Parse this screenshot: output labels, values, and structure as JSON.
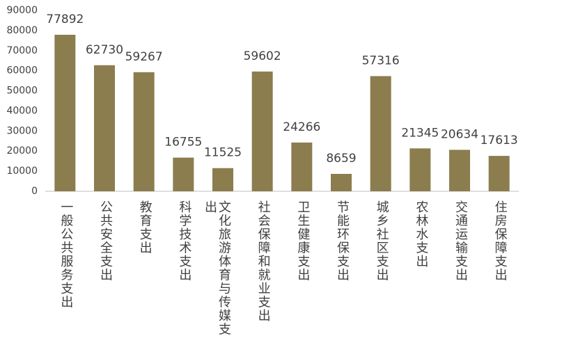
{
  "chart_data": {
    "type": "bar",
    "categories": [
      "一般公共服务支出",
      "公共安全支出",
      "教育支出",
      "科学技术支出",
      "文化旅游体育与传媒支出",
      "社会保障和就业支出",
      "卫生健康支出",
      "节能环保支出",
      "城乡社区支出",
      "农林水支出",
      "交通运输支出",
      "住房保障支出"
    ],
    "values": [
      77892,
      62730,
      59267,
      16755,
      11525,
      59602,
      24266,
      8659,
      57316,
      21345,
      20634,
      17613
    ],
    "color": "#8b7d4e",
    "ylim": [
      0,
      90000
    ],
    "yticks": [
      0,
      10000,
      20000,
      30000,
      40000,
      50000,
      60000,
      70000,
      80000,
      90000
    ],
    "grid": false
  }
}
